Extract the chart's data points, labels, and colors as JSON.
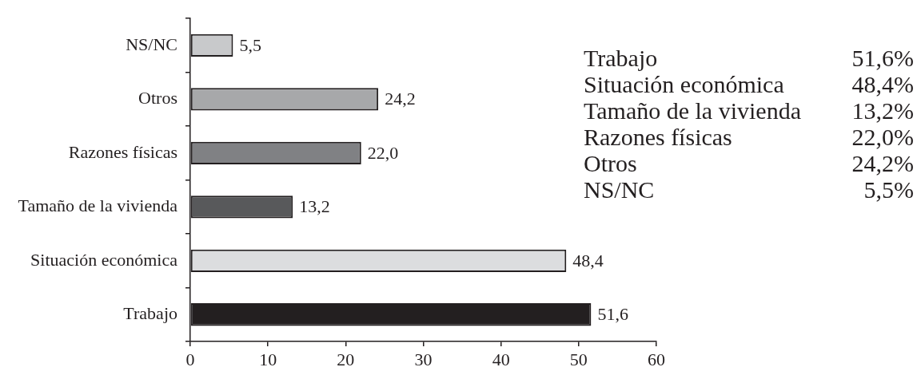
{
  "chart_data": {
    "type": "bar",
    "orientation": "horizontal",
    "categories": [
      "NS/NC",
      "Otros",
      "Razones físicas",
      "Tamaño de la vivienda",
      "Situación económica",
      "Trabajo"
    ],
    "values": [
      5.5,
      24.2,
      22.0,
      13.2,
      48.4,
      51.6
    ],
    "colors": [
      "#c8c9cb",
      "#a7a8aa",
      "#808184",
      "#58595b",
      "#dcdddf",
      "#231f20"
    ],
    "value_labels": [
      "5,5",
      "24,2",
      "22,0",
      "13,2",
      "48,4",
      "51,6"
    ],
    "xlim": [
      0,
      60
    ],
    "xticks": [
      0,
      10,
      20,
      30,
      40,
      50,
      60
    ],
    "annotations": [
      "Trabajo",
      "51,6%",
      "Situación económica",
      "48,4%",
      "Tamaño de la vivienda",
      "13,2%",
      "Razones físicas",
      "22,0%",
      "Otros",
      "24,2%",
      "NS/NC",
      "5,5%"
    ]
  }
}
